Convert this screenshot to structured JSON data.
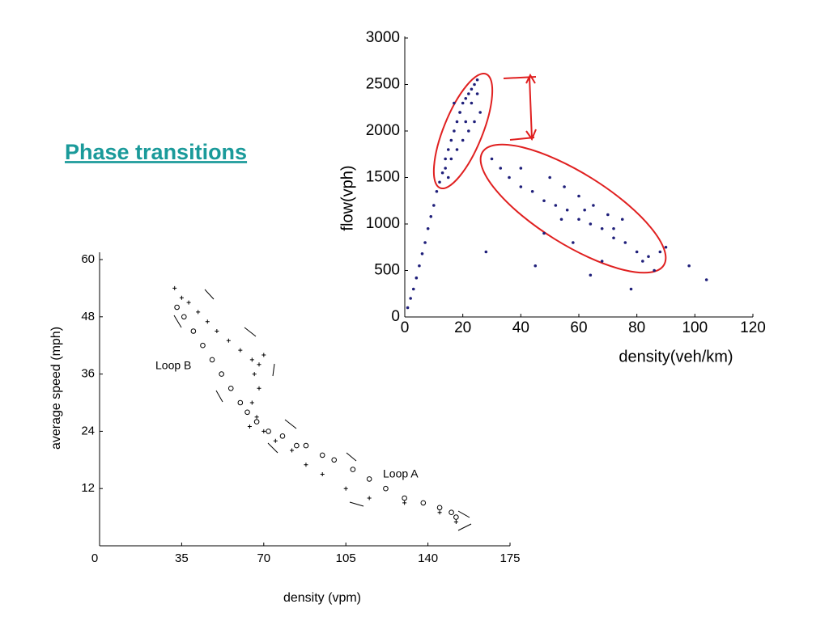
{
  "title": "Phase transitions",
  "chart_data": [
    {
      "type": "scatter",
      "xlabel": "density(veh/km)",
      "ylabel": "flow(vph)",
      "xlim": [
        0,
        120
      ],
      "ylim": [
        0,
        3000
      ],
      "xticks": [
        0,
        20,
        40,
        60,
        80,
        100,
        120
      ],
      "yticks": [
        0,
        500,
        1000,
        1500,
        2000,
        2500,
        3000
      ],
      "series": [
        {
          "color": "#1f1f7a",
          "marker": "dot",
          "x": [
            1,
            2,
            3,
            4,
            5,
            6,
            7,
            8,
            9,
            10,
            11,
            12,
            13,
            14,
            15,
            16,
            17,
            18,
            19,
            20,
            21,
            22,
            23,
            24,
            25,
            14,
            16,
            18,
            20,
            22,
            24,
            26,
            17,
            19,
            21,
            23,
            25,
            15,
            30,
            33,
            36,
            40,
            44,
            48,
            52,
            56,
            60,
            64,
            68,
            72,
            76,
            80,
            84,
            88,
            90,
            98,
            104,
            28,
            45,
            64,
            78,
            40,
            50,
            55,
            60,
            70,
            75,
            65,
            48,
            58,
            68,
            72,
            82,
            86,
            62,
            54
          ],
          "values": [
            100,
            200,
            300,
            420,
            550,
            680,
            800,
            950,
            1080,
            1200,
            1350,
            1450,
            1550,
            1700,
            1800,
            1900,
            2000,
            2100,
            2200,
            2300,
            2350,
            2400,
            2450,
            2500,
            2550,
            1600,
            1700,
            1800,
            1900,
            2000,
            2100,
            2200,
            2300,
            2200,
            2100,
            2300,
            2400,
            1500,
            1700,
            1600,
            1500,
            1400,
            1350,
            1250,
            1200,
            1150,
            1050,
            1000,
            950,
            850,
            800,
            700,
            650,
            700,
            750,
            550,
            400,
            700,
            550,
            450,
            300,
            1600,
            1500,
            1400,
            1300,
            1100,
            1050,
            1200,
            900,
            800,
            600,
            950,
            600,
            500,
            1150,
            1050
          ]
        }
      ]
    },
    {
      "type": "scatter",
      "xlabel": "density (vpm)",
      "ylabel": "average speed (mph)",
      "xlim": [
        0,
        175
      ],
      "ylim": [
        0,
        60
      ],
      "xticks": [
        0,
        35,
        70,
        105,
        140,
        175
      ],
      "yticks": [
        12,
        24,
        36,
        48,
        60
      ],
      "annotations": [
        "Loop B",
        "Loop A"
      ],
      "series": [
        {
          "color": "#000000",
          "marker": "plus",
          "x": [
            32,
            35,
            38,
            42,
            46,
            50,
            55,
            60,
            65,
            68,
            70,
            66,
            68,
            65,
            67,
            64,
            70,
            75,
            82,
            88,
            95,
            105,
            115,
            130,
            145,
            152
          ],
          "values": [
            54,
            52,
            51,
            49,
            47,
            45,
            43,
            41,
            39,
            38,
            40,
            36,
            33,
            30,
            27,
            25,
            24,
            22,
            20,
            17,
            15,
            12,
            10,
            9,
            7,
            5
          ]
        },
        {
          "color": "#000000",
          "marker": "circle",
          "x": [
            33,
            36,
            40,
            44,
            48,
            52,
            56,
            60,
            63,
            67,
            72,
            78,
            84,
            88,
            95,
            100,
            108,
            115,
            122,
            130,
            138,
            145,
            150,
            152
          ],
          "values": [
            50,
            48,
            45,
            42,
            39,
            36,
            33,
            30,
            28,
            26,
            24,
            23,
            21,
            21,
            19,
            18,
            16,
            14,
            12,
            10,
            9,
            8,
            7,
            6
          ]
        }
      ]
    }
  ]
}
